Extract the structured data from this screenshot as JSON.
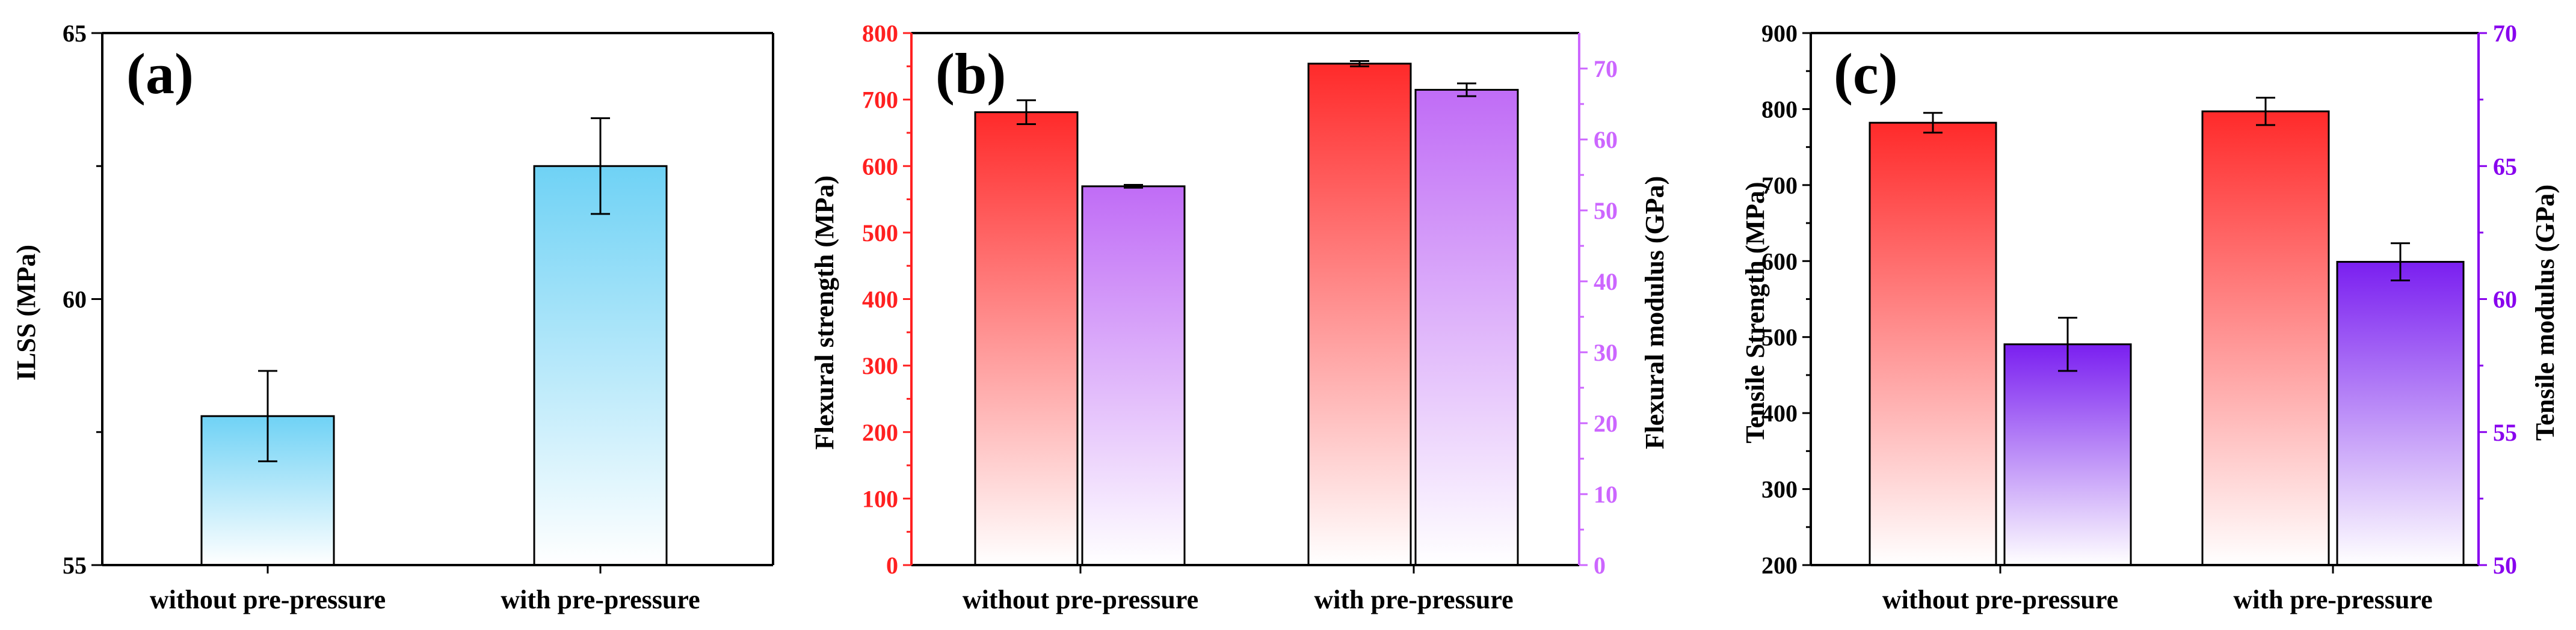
{
  "colors": {
    "axis": "#000000",
    "red_axis": "#ff2020",
    "purple_axis": "#cc66ff",
    "purple_axis_c": "#8800ee",
    "blue_fill": "#6fd2f5",
    "red_fill": "#ff2a2a",
    "purple_fill_b": "#c06cf6",
    "purple_fill_c": "#7a1ff0"
  },
  "chart_data": [
    {
      "panel": "a",
      "type": "bar",
      "label": "(a)",
      "categories": [
        "without pre-pressure",
        "with pre-pressure"
      ],
      "series": [
        {
          "name": "ILSS",
          "axis": "left",
          "values": [
            57.8,
            62.5
          ],
          "errors": [
            0.85,
            0.9
          ],
          "color": "#6fd2f5"
        }
      ],
      "ylabel": "ILSS (MPa)",
      "ylim": [
        55,
        65
      ],
      "yticks": [
        55,
        60,
        65
      ],
      "yticks_minor": [
        57.5,
        62.5
      ]
    },
    {
      "panel": "b",
      "type": "bar",
      "label": "(b)",
      "categories": [
        "without pre-pressure",
        "with pre-pressure"
      ],
      "series": [
        {
          "name": "Flexural strength",
          "axis": "left",
          "values": [
            681,
            754
          ],
          "errors": [
            18,
            4
          ],
          "color": "#ff2a2a"
        },
        {
          "name": "Flexural modulus",
          "axis": "right",
          "values": [
            53.4,
            67.0
          ],
          "errors": [
            0.2,
            0.9
          ],
          "color": "#c06cf6"
        }
      ],
      "ylabel": "Flexural strength (MPa)",
      "ylabel_right": "Flexural modulus (GPa)",
      "ylim": [
        0,
        800
      ],
      "yticks": [
        0,
        100,
        200,
        300,
        400,
        500,
        600,
        700,
        800
      ],
      "ylim_right": [
        0,
        75
      ],
      "yticks_right": [
        0,
        10,
        20,
        30,
        40,
        50,
        60,
        70
      ]
    },
    {
      "panel": "c",
      "type": "bar",
      "label": "(c)",
      "categories": [
        "without pre-pressure",
        "with pre-pressure"
      ],
      "series": [
        {
          "name": "Tensile Strength",
          "axis": "left",
          "values": [
            782,
            797
          ],
          "errors": [
            13,
            18
          ],
          "color": "#ff2a2a"
        },
        {
          "name": "Tensile modulus",
          "axis": "right",
          "values": [
            58.3,
            61.4
          ],
          "errors": [
            1.0,
            0.7
          ],
          "color": "#7a1ff0"
        }
      ],
      "ylabel": "Tensile Strength (MPa)",
      "ylabel_right": "Tensile modulus (GPa)",
      "ylim": [
        200,
        900
      ],
      "yticks": [
        200,
        300,
        400,
        500,
        600,
        700,
        800,
        900
      ],
      "ylim_right": [
        50,
        70
      ],
      "yticks_right": [
        50,
        55,
        60,
        65,
        70
      ]
    }
  ]
}
